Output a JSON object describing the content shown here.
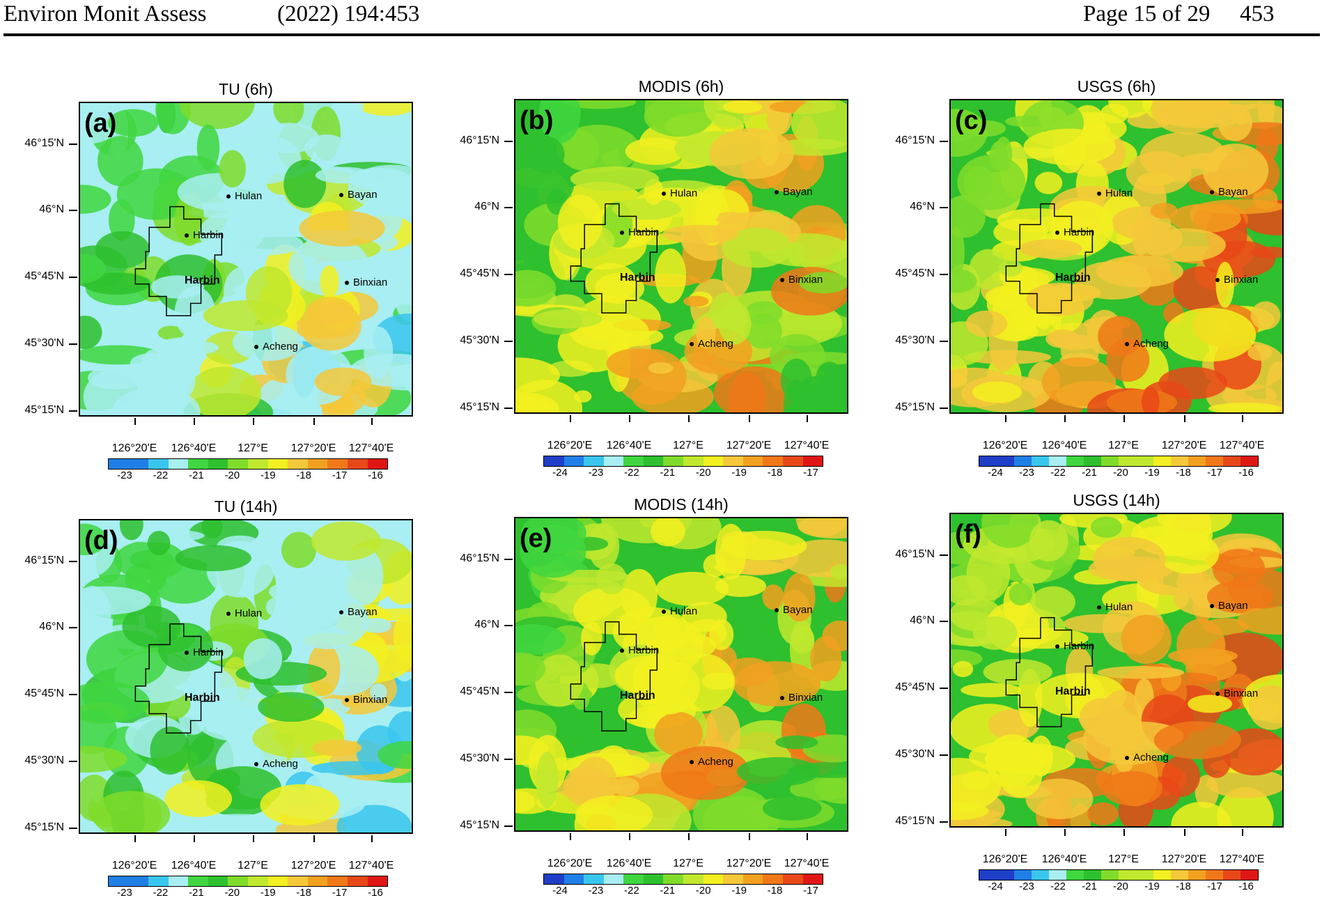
{
  "header": {
    "journal": "Environ Monit Assess",
    "citation": "(2022) 194:453",
    "page": "Page 15 of 29",
    "page_number": "453"
  },
  "palette": [
    "#1e3ec8",
    "#1f7fe6",
    "#39c6ee",
    "#a8eef2",
    "#3fd63f",
    "#2ec02e",
    "#7fdc2a",
    "#bfe82e",
    "#f2f020",
    "#f5c83a",
    "#f2a020",
    "#f07818",
    "#e84818",
    "#e01616"
  ],
  "panels": [
    {
      "id": "a",
      "title": "TU (6h)",
      "label": "(a)",
      "tone": "blue",
      "colorbar_ticks": [
        "-23",
        "-22",
        "-21",
        "-20",
        "-19",
        "-18",
        "-17",
        "-16"
      ]
    },
    {
      "id": "b",
      "title": "MODIS (6h)",
      "label": "(b)",
      "tone": "mid",
      "colorbar_ticks": [
        "-24",
        "-23",
        "-22",
        "-21",
        "-20",
        "-19",
        "-18",
        "-17"
      ]
    },
    {
      "id": "c",
      "title": "USGS (6h)",
      "label": "(c)",
      "tone": "warm",
      "colorbar_ticks": [
        "-24",
        "-23",
        "-22",
        "-21",
        "-20",
        "-19",
        "-18",
        "-17",
        "-16"
      ]
    },
    {
      "id": "d",
      "title": "TU (14h)",
      "label": "(d)",
      "tone": "blue",
      "colorbar_ticks": [
        "-23",
        "-22",
        "-21",
        "-20",
        "-19",
        "-18",
        "-17",
        "-16"
      ]
    },
    {
      "id": "e",
      "title": "MODIS (14h)",
      "label": "(e)",
      "tone": "mid",
      "colorbar_ticks": [
        "-24",
        "-23",
        "-22",
        "-21",
        "-20",
        "-19",
        "-18",
        "-17"
      ]
    },
    {
      "id": "f",
      "title": "USGS (14h)",
      "label": "(f)",
      "tone": "warm",
      "colorbar_ticks": [
        "-24",
        "-23",
        "-22",
        "-21",
        "-20",
        "-19",
        "-18",
        "-17",
        "-16"
      ]
    }
  ],
  "lat_labels": [
    "46°15'N",
    "46°N",
    "45°45'N",
    "45°30'N",
    "45°15'N"
  ],
  "lon_labels": [
    "126°20'E",
    "126°40'E",
    "127°E",
    "127°20'E",
    "127°40'E"
  ],
  "cities": {
    "hulan": "Hulan",
    "bayan": "Bayan",
    "harbin_point": "Harbin",
    "harbin_area": "Harbin",
    "binxian": "Binxian",
    "acheng": "Acheng"
  }
}
